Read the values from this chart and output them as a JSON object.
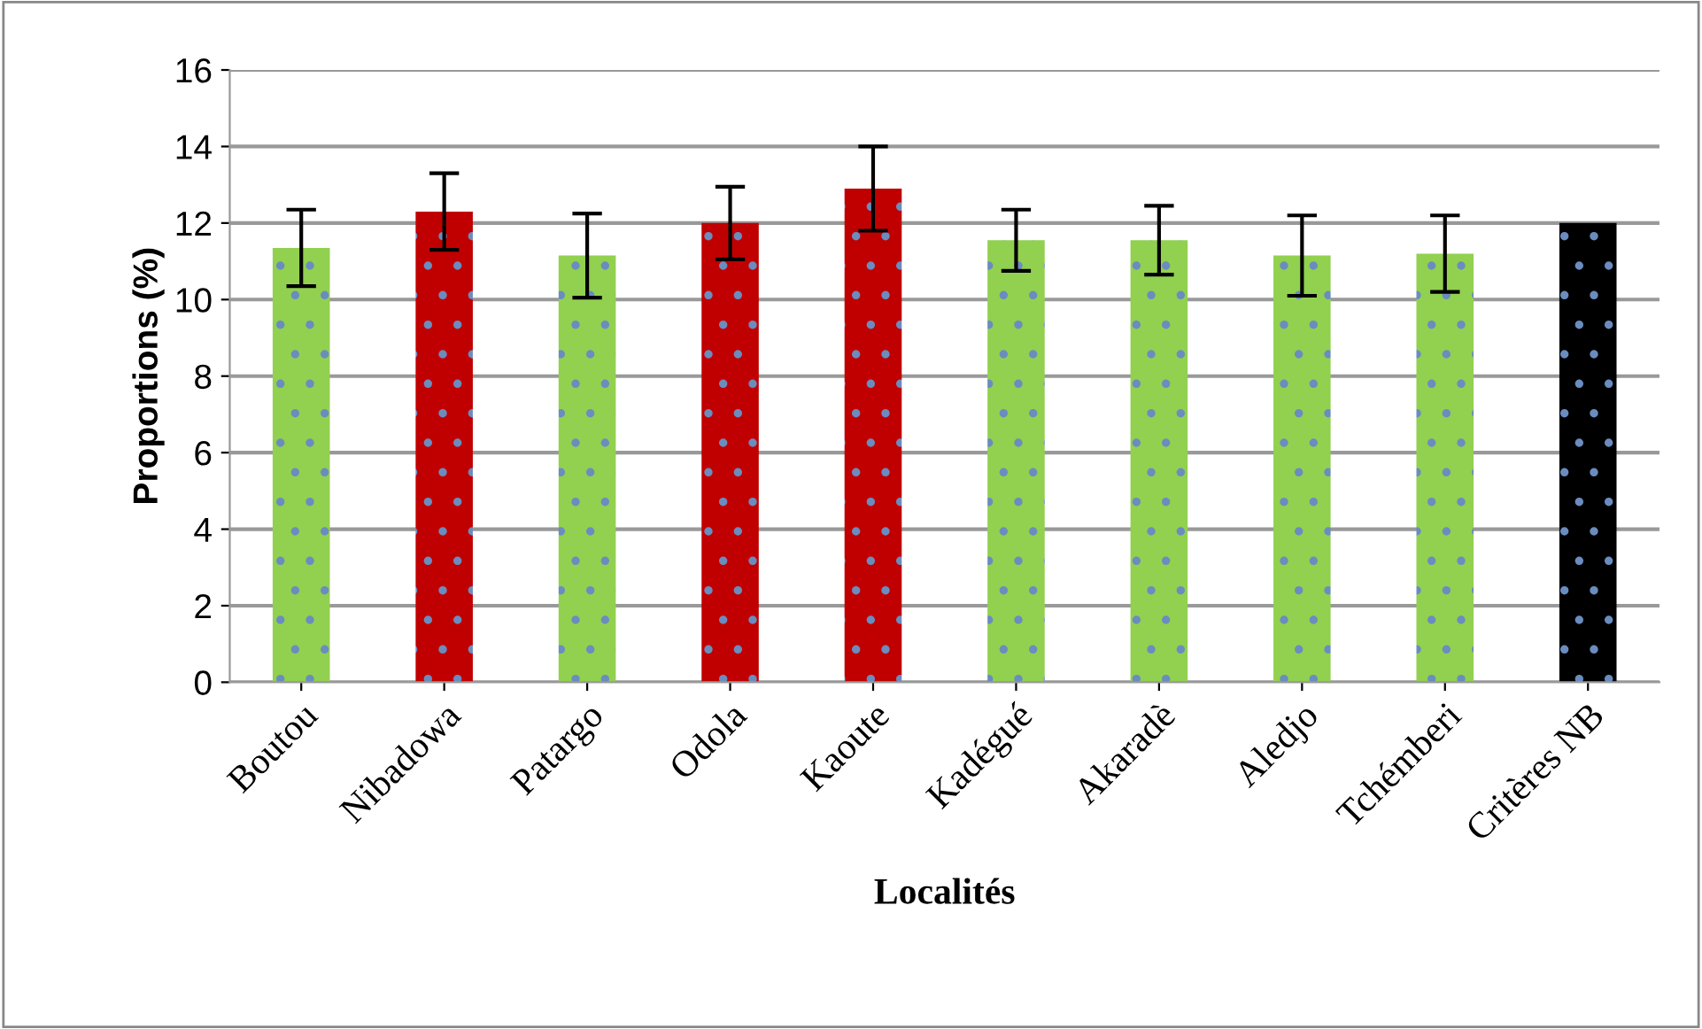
{
  "chart_data": {
    "type": "bar",
    "xlabel": "Localités",
    "ylabel": "Proportions (%)",
    "categories": [
      "Boutou",
      "Nibadowa",
      "Patargo",
      "Odola",
      "Kaoute",
      "Kadégué",
      "Akaradè",
      "Aledjo",
      "Tchémberi",
      "Critères NB"
    ],
    "values": [
      11.35,
      12.3,
      11.15,
      12.0,
      12.9,
      11.55,
      11.55,
      11.15,
      11.2,
      12.0
    ],
    "errors": [
      1.0,
      1.0,
      1.1,
      0.95,
      1.1,
      0.8,
      0.9,
      1.05,
      1.0,
      null
    ],
    "colors": [
      "#92d050",
      "#c00000",
      "#92d050",
      "#c00000",
      "#c00000",
      "#92d050",
      "#92d050",
      "#92d050",
      "#92d050",
      "#000000"
    ],
    "ylim": [
      0,
      16
    ],
    "yticks": [
      0,
      2,
      4,
      6,
      8,
      10,
      12,
      14,
      16
    ],
    "grid": "y",
    "legend": false
  }
}
